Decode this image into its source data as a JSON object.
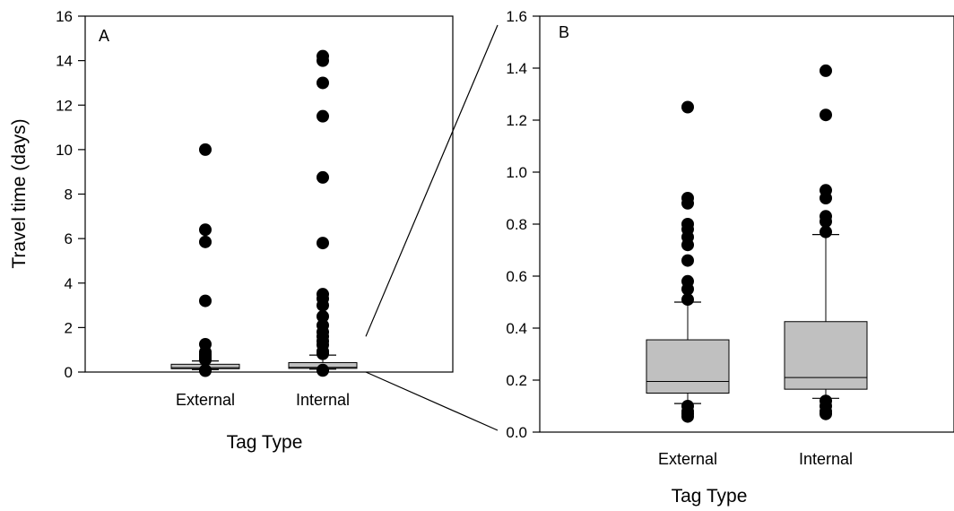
{
  "chart_data": [
    {
      "type": "box",
      "panel_label": "A",
      "ylabel": "Travel time (days)",
      "xlabel": "Tag Type",
      "ylim": [
        0,
        16
      ],
      "yticks": [
        0,
        2,
        4,
        6,
        8,
        10,
        12,
        14,
        16
      ],
      "categories": [
        "External",
        "Internal"
      ],
      "boxes": [
        {
          "category": "External",
          "whisker_low": 0.11,
          "q1": 0.15,
          "median": 0.195,
          "q3": 0.35,
          "whisker_high": 0.5,
          "outliers": [
            0.06,
            0.08,
            0.55,
            0.58,
            0.66,
            0.73,
            0.8,
            0.9,
            1.25,
            3.2,
            5.85,
            6.4,
            10.0
          ]
        },
        {
          "category": "Internal",
          "whisker_low": 0.13,
          "q1": 0.165,
          "median": 0.21,
          "q3": 0.425,
          "whisker_high": 0.76,
          "outliers": [
            0.07,
            0.09,
            0.82,
            0.93,
            1.22,
            1.39,
            1.6,
            1.8,
            2.1,
            2.5,
            3.0,
            3.3,
            3.5,
            5.8,
            8.75,
            11.5,
            13.0,
            14.0,
            14.2
          ]
        }
      ]
    },
    {
      "type": "box",
      "panel_label": "B",
      "ylabel": "",
      "xlabel": "Tag Type",
      "ylim": [
        0,
        1.6
      ],
      "yticks": [
        "0.0",
        "0.2",
        "0.4",
        "0.6",
        "0.8",
        "1.0",
        "1.2",
        "1.4",
        "1.6"
      ],
      "categories": [
        "External",
        "Internal"
      ],
      "boxes": [
        {
          "category": "External",
          "whisker_low": 0.11,
          "q1": 0.15,
          "median": 0.195,
          "q3": 0.355,
          "whisker_high": 0.5,
          "outliers": [
            0.06,
            0.07,
            0.08,
            0.1,
            0.51,
            0.55,
            0.58,
            0.66,
            0.72,
            0.75,
            0.78,
            0.8,
            0.88,
            0.9,
            1.25
          ]
        },
        {
          "category": "Internal",
          "whisker_low": 0.13,
          "q1": 0.165,
          "median": 0.21,
          "q3": 0.425,
          "whisker_high": 0.76,
          "outliers": [
            0.07,
            0.08,
            0.1,
            0.12,
            0.77,
            0.81,
            0.83,
            0.9,
            0.93,
            1.22,
            1.39
          ]
        }
      ]
    }
  ]
}
